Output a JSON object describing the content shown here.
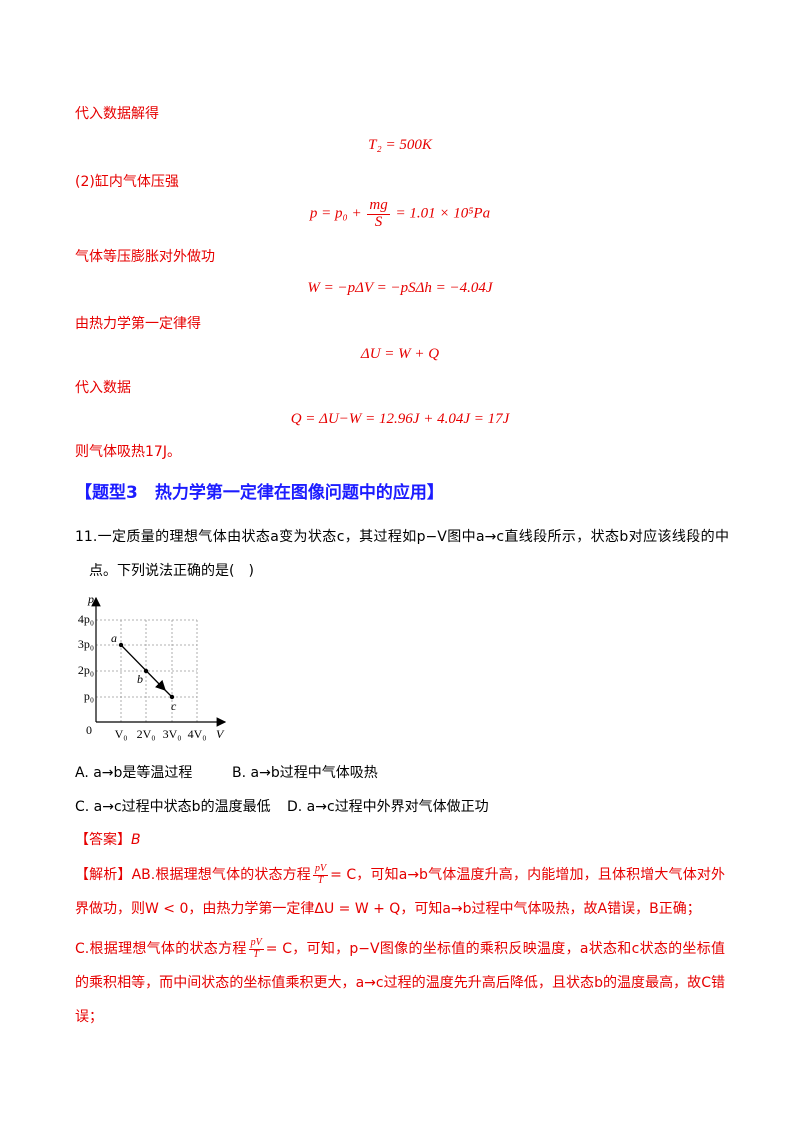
{
  "solution": {
    "step1": "代入数据解得",
    "eq1": "T₂ = 500K",
    "part2": "(2)缸内气体压强",
    "eq2": {
      "lhs": "p = p₀ +",
      "num": "mg",
      "den": "S",
      "rhs": "= 1.01 × 10⁵Pa"
    },
    "step2": "气体等压膨胀对外做功",
    "eq3": "W = −pΔV = −pSΔh = −4.04J",
    "step3": "由热力学第一定律得",
    "eq4": "ΔU = W + Q",
    "step4": "代入数据",
    "eq5": "Q = ΔU−W = 12.96J + 4.04J = 17J",
    "conclusion": "则气体吸热17J。"
  },
  "section_heading": "【题型3　热力学第一定律在图像问题中的应用】",
  "question": {
    "stem": "11.一定质量的理想气体由状态a变为状态c，其过程如p−V图中a→c直线段所示，状态b对应该线段的中点。下列说法正确的是(　)",
    "figure": {
      "y_axis": "p",
      "x_axis": "V",
      "origin": "0",
      "y_labels": [
        "4p₀",
        "3p₀",
        "2p₀",
        "p₀"
      ],
      "x_labels": [
        "V₀",
        "2V₀",
        "3V₀",
        "4V₀"
      ],
      "points": [
        "a",
        "b",
        "c"
      ]
    },
    "options": [
      "A. a→b是等温过程",
      "B. a→b过程中气体吸热",
      "C. a→c过程中状态b的温度最低",
      "D. a→c过程中外界对气体做正功"
    ]
  },
  "answer": {
    "label": "【答案】",
    "value": "B"
  },
  "analysis": {
    "p1": {
      "pre": "【解析】AB.根据理想气体的状态方程",
      "num": "pV",
      "den": "T",
      "post": "= C，可知a→b气体温度升高，内能增加，且体积增大气体对外界做功，则W < 0，由热力学第一定律ΔU = W + Q，可知a→b过程中气体吸热，故A错误，B正确；"
    },
    "p2": {
      "pre": "C.根据理想气体的状态方程",
      "num": "pV",
      "den": "T",
      "post": "= C，可知，p−V图像的坐标值的乘积反映温度，a状态和c状态的坐标值的乘积相等，而中间状态的坐标值乘积更大，a→c过程的温度先升高后降低，且状态b的温度最高，故C错误；"
    }
  }
}
